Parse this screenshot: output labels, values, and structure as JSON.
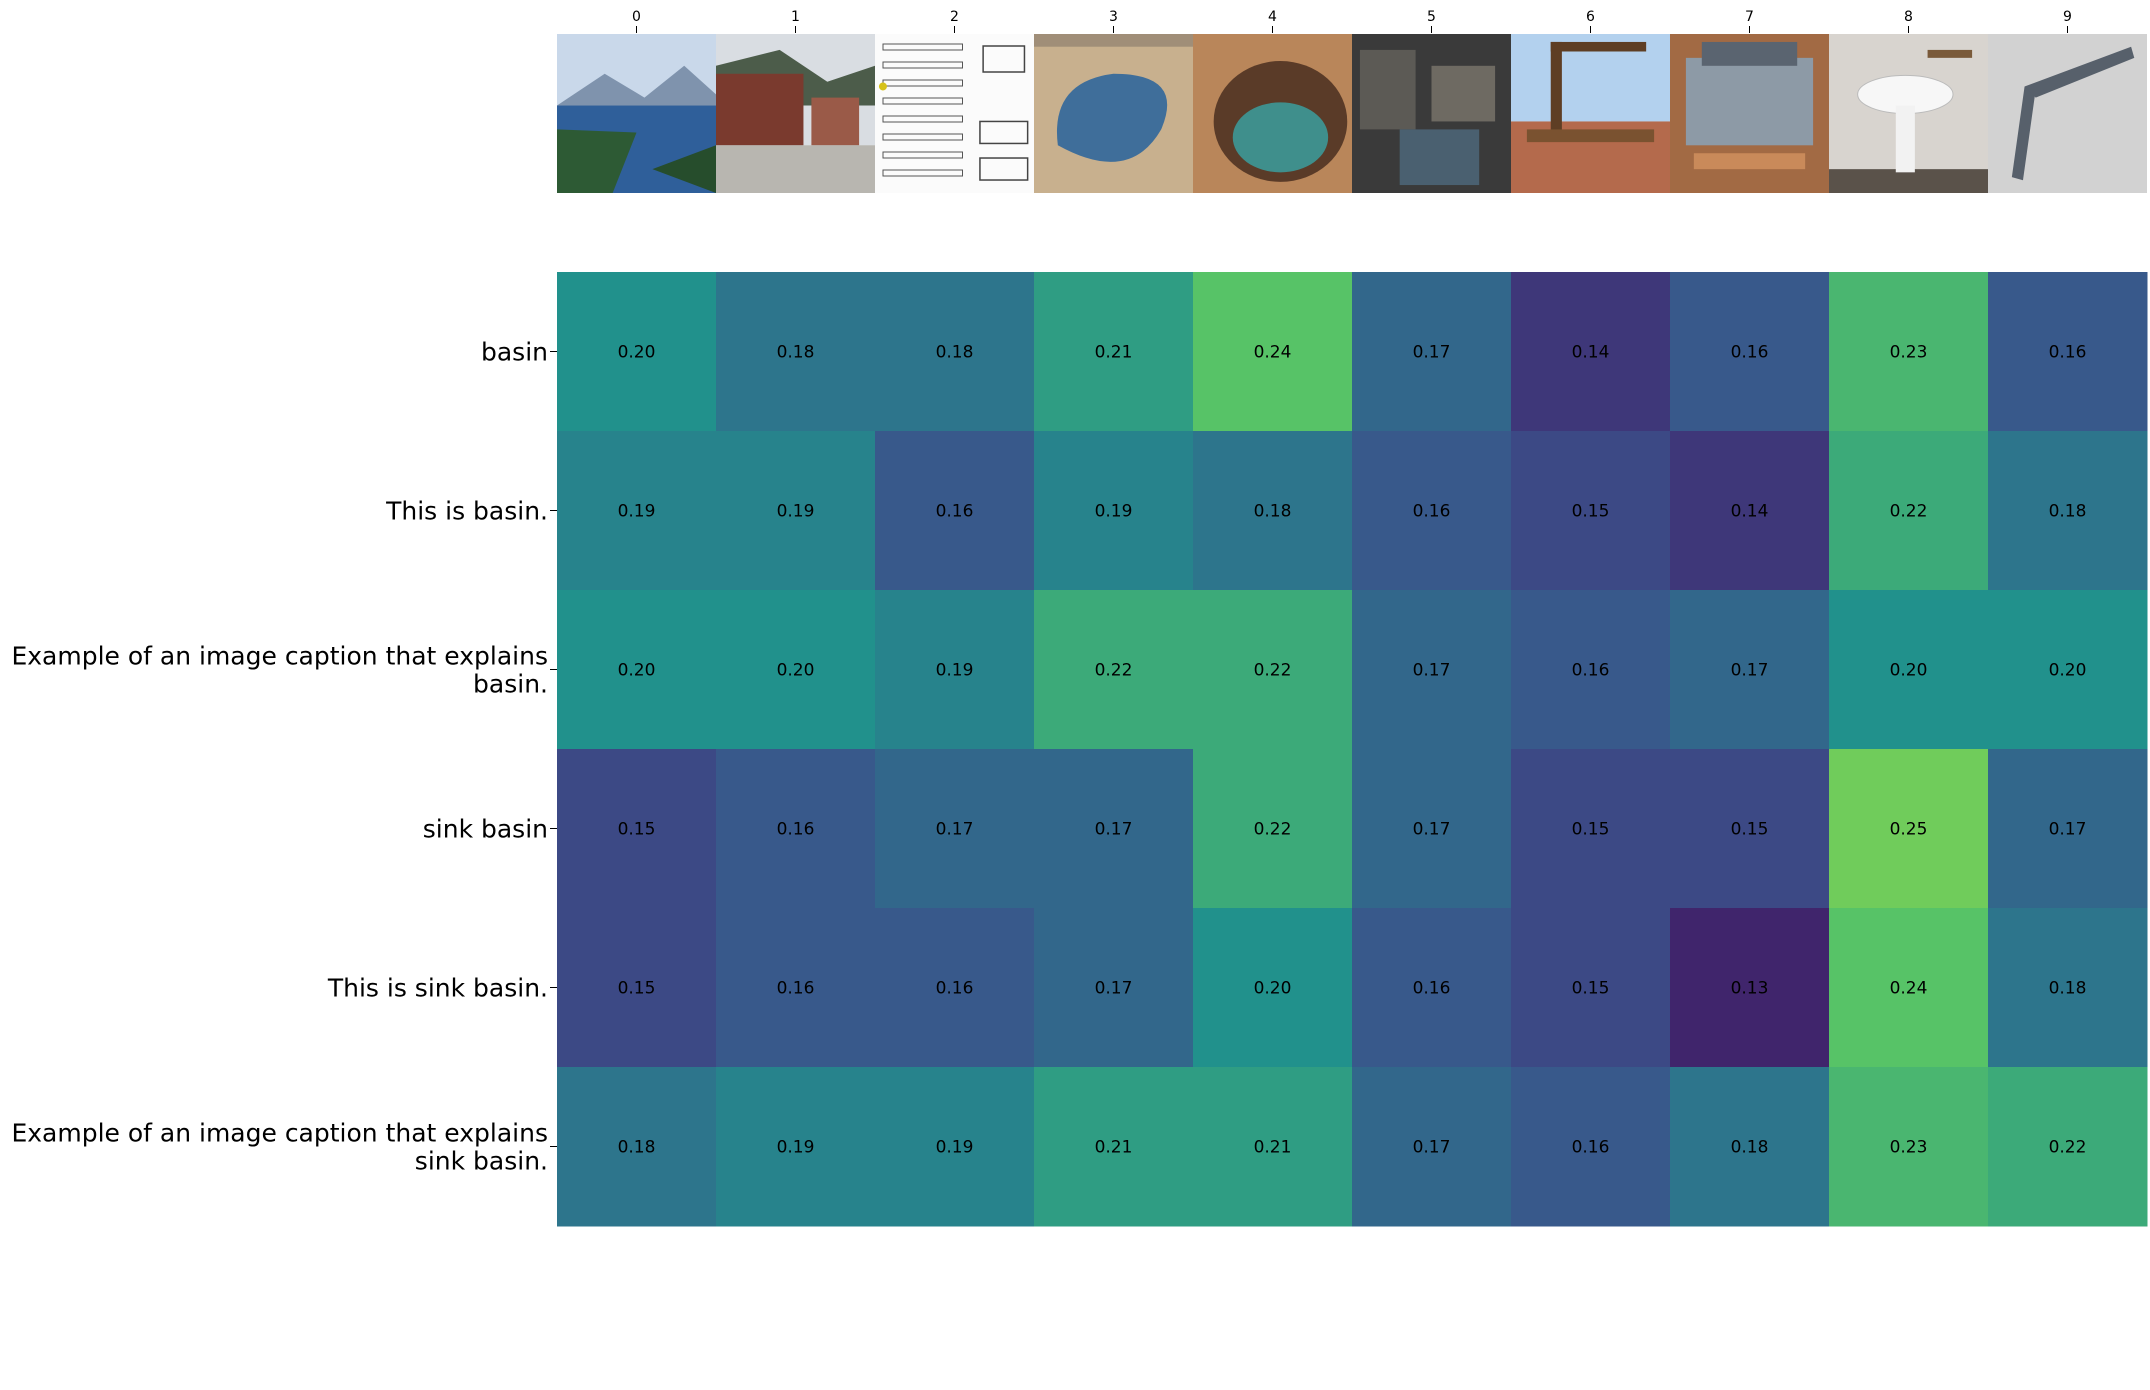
{
  "chart_data": {
    "type": "heatmap",
    "title": "",
    "xlabel": "",
    "ylabel": "",
    "x_tick_labels": [
      "0",
      "1",
      "2",
      "3",
      "4",
      "5",
      "6",
      "7",
      "8",
      "9"
    ],
    "thumbnails": [
      {
        "icon": "lake-mountains-photo"
      },
      {
        "icon": "town-street-photo"
      },
      {
        "icon": "technical-drawings-sheet"
      },
      {
        "icon": "aerial-lake-photo"
      },
      {
        "icon": "canyon-pool-photo"
      },
      {
        "icon": "workshop-interior-photo"
      },
      {
        "icon": "wooden-gallows-photo"
      },
      {
        "icon": "engine-on-stand-photo"
      },
      {
        "icon": "pedestal-sink-photo"
      },
      {
        "icon": "carpenter-square-photo"
      }
    ],
    "rows": [
      {
        "label_lines": [
          "basin"
        ],
        "values": [
          "0.20",
          "0.18",
          "0.18",
          "0.21",
          "0.24",
          "0.17",
          "0.14",
          "0.16",
          "0.23",
          "0.16"
        ]
      },
      {
        "label_lines": [
          "This is basin."
        ],
        "values": [
          "0.19",
          "0.19",
          "0.16",
          "0.19",
          "0.18",
          "0.16",
          "0.15",
          "0.14",
          "0.22",
          "0.18"
        ]
      },
      {
        "label_lines": [
          "Example of an image caption that explains",
          "basin."
        ],
        "values": [
          "0.20",
          "0.20",
          "0.19",
          "0.22",
          "0.22",
          "0.17",
          "0.16",
          "0.17",
          "0.20",
          "0.20"
        ]
      },
      {
        "label_lines": [
          "sink basin"
        ],
        "values": [
          "0.15",
          "0.16",
          "0.17",
          "0.17",
          "0.22",
          "0.17",
          "0.15",
          "0.15",
          "0.25",
          "0.17"
        ]
      },
      {
        "label_lines": [
          "This is sink basin."
        ],
        "values": [
          "0.15",
          "0.16",
          "0.16",
          "0.17",
          "0.20",
          "0.16",
          "0.15",
          "0.13",
          "0.24",
          "0.18"
        ]
      },
      {
        "label_lines": [
          "Example of an image caption that explains",
          "sink basin."
        ],
        "values": [
          "0.18",
          "0.19",
          "0.19",
          "0.21",
          "0.21",
          "0.17",
          "0.16",
          "0.18",
          "0.23",
          "0.22"
        ]
      }
    ],
    "colormap": "viridis",
    "vmin": 0.11,
    "vmax": 0.29,
    "legend": "none",
    "grid": false
  }
}
